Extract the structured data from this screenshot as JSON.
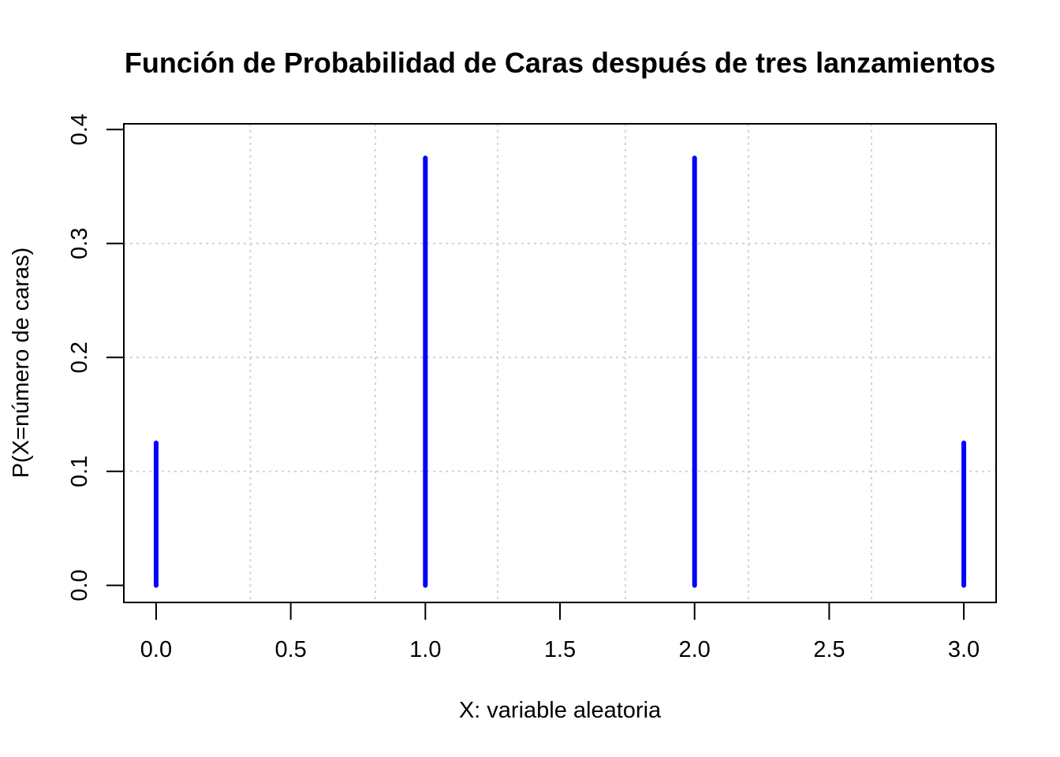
{
  "chart_data": {
    "type": "bar",
    "title": "Función de Probabilidad de Caras después de tres lanzamientos",
    "xlabel": "X: variable aleatoria",
    "ylabel": "P(X=número de caras)",
    "x": [
      0,
      1,
      2,
      3
    ],
    "values": [
      0.125,
      0.375,
      0.375,
      0.125
    ],
    "xlim": [
      -0.12,
      3.12
    ],
    "ylim": [
      -0.015,
      0.405
    ],
    "xticks": [
      0.0,
      0.5,
      1.0,
      1.5,
      2.0,
      2.5,
      3.0
    ],
    "xtick_labels": [
      "0.0",
      "0.5",
      "1.0",
      "1.5",
      "2.0",
      "2.5",
      "3.0"
    ],
    "yticks": [
      0.0,
      0.1,
      0.2,
      0.3,
      0.4
    ],
    "ytick_labels": [
      "0.0",
      "0.1",
      "0.2",
      "0.3",
      "0.4"
    ],
    "grid": true,
    "grid_x": [
      0.35,
      0.8142,
      1.2685,
      1.7428,
      2.2,
      2.6571
    ],
    "grid_y": [
      0.1,
      0.2,
      0.3
    ],
    "line_color": "#0000ff",
    "grid_color": "#d3d3d3"
  }
}
